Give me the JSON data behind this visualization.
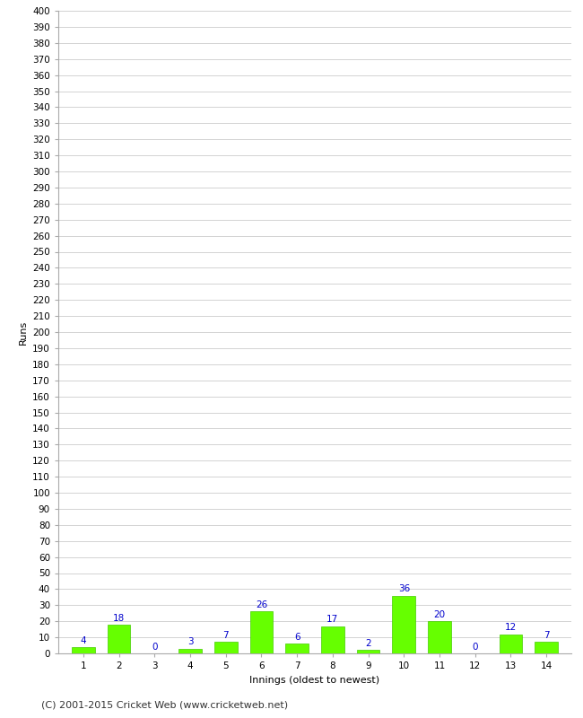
{
  "xlabel": "Innings (oldest to newest)",
  "ylabel": "Runs",
  "categories": [
    1,
    2,
    3,
    4,
    5,
    6,
    7,
    8,
    9,
    10,
    11,
    12,
    13,
    14
  ],
  "values": [
    4,
    18,
    0,
    3,
    7,
    26,
    6,
    17,
    2,
    36,
    20,
    0,
    12,
    7
  ],
  "bar_color": "#66ff00",
  "bar_edge_color": "#44cc00",
  "label_color": "#0000cc",
  "label_fontsize": 7.5,
  "ylim": [
    0,
    400
  ],
  "ytick_step": 10,
  "background_color": "#ffffff",
  "grid_color": "#cccccc",
  "footer": "(C) 2001-2015 Cricket Web (www.cricketweb.net)",
  "footer_fontsize": 8,
  "xlabel_fontsize": 8,
  "ylabel_fontsize": 8,
  "tick_fontsize": 7.5
}
